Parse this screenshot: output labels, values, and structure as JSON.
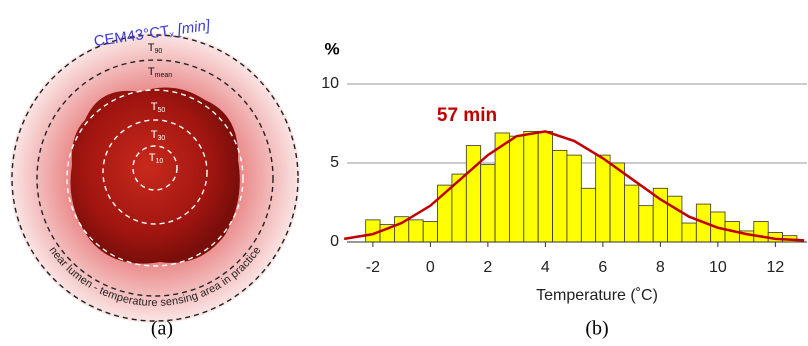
{
  "diagram": {
    "title": "CEM43°CT",
    "title_sub": "x",
    "title_unit": "[min]",
    "rings": [
      {
        "main": "T",
        "sub": "90"
      },
      {
        "main": "T",
        "sub": "mean"
      },
      {
        "main": "T",
        "sub": "50"
      },
      {
        "main": "T",
        "sub": "30"
      },
      {
        "main": "T",
        "sub": "10"
      }
    ],
    "arc_label": "near lumen - temperature sensing area in practice",
    "caption": "(a)"
  },
  "chart_data": {
    "type": "histogram",
    "y_label": "%",
    "x_label": "Temperature (˚C)",
    "caption": "(b)",
    "annotation": "57 min",
    "bins": [
      -2.25,
      -1.75,
      -1.25,
      -0.75,
      -0.25,
      0.25,
      0.75,
      1.25,
      1.75,
      2.25,
      2.75,
      3.25,
      3.75,
      4.25,
      4.75,
      5.25,
      5.75,
      6.25,
      6.75,
      7.25,
      7.75,
      8.25,
      8.75,
      9.25,
      9.75,
      10.25,
      10.75,
      11.25,
      11.75,
      12.25,
      12.75
    ],
    "values": [
      1.4,
      1.1,
      1.6,
      1.4,
      1.3,
      3.6,
      4.3,
      6.1,
      4.9,
      6.9,
      6.7,
      7.0,
      7.0,
      5.8,
      5.5,
      3.4,
      5.5,
      5.0,
      3.6,
      2.3,
      3.4,
      2.9,
      1.2,
      2.4,
      1.9,
      1.3,
      0.7,
      1.3,
      0.6,
      0.4
    ],
    "color": "#ffff00",
    "curve": {
      "color": "#c00000",
      "x": [
        -3,
        -2,
        -1,
        0,
        1,
        2,
        3,
        4,
        5,
        6,
        7,
        8,
        9,
        10,
        11,
        12,
        13
      ],
      "values": [
        0.2,
        0.5,
        1.2,
        2.3,
        3.9,
        5.5,
        6.7,
        7.0,
        6.4,
        5.3,
        4.0,
        2.7,
        1.6,
        0.9,
        0.5,
        0.2,
        0.1
      ]
    },
    "xlim": [
      -2.9,
      13.1
    ],
    "ylim": [
      0,
      10
    ],
    "xticks": [
      -2,
      0,
      2,
      4,
      6,
      8,
      10,
      12
    ],
    "yticks": [
      0,
      5,
      10
    ],
    "grid": true
  }
}
